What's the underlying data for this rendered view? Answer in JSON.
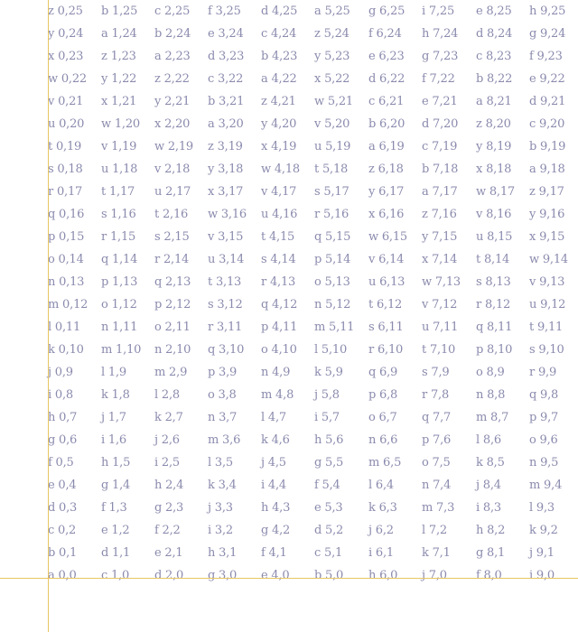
{
  "rows": [
    [
      "z 0,25",
      "b 1,25",
      "c 2,25",
      "f 3,25",
      "d 4,25",
      "a 5,25",
      "g 6,25",
      "i 7,25",
      "e 8,25",
      "h 9,25"
    ],
    [
      "y 0,24",
      "a 1,24",
      "b 2,24",
      "e 3,24",
      "c 4,24",
      "z 5,24",
      "f 6,24",
      "h 7,24",
      "d 8,24",
      "g 9,24"
    ],
    [
      "x 0,23",
      "z 1,23",
      "a 2,23",
      "d 3,23",
      "b 4,23",
      "y 5,23",
      "e 6,23",
      "g 7,23",
      "c 8,23",
      "f 9,23"
    ],
    [
      "w 0,22",
      "y 1,22",
      "z 2,22",
      "c 3,22",
      "a 4,22",
      "x 5,22",
      "d 6,22",
      "f 7,22",
      "b 8,22",
      "e 9,22"
    ],
    [
      "v 0,21",
      "x 1,21",
      "y 2,21",
      "b 3,21",
      "z 4,21",
      "w 5,21",
      "c 6,21",
      "e 7,21",
      "a 8,21",
      "d 9,21"
    ],
    [
      "u 0,20",
      "w 1,20",
      "x 2,20",
      "a 3,20",
      "y 4,20",
      "v 5,20",
      "b 6,20",
      "d 7,20",
      "z 8,20",
      "c 9,20"
    ],
    [
      "t 0,19",
      "v 1,19",
      "w 2,19",
      "z 3,19",
      "x 4,19",
      "u 5,19",
      "a 6,19",
      "c 7,19",
      "y 8,19",
      "b 9,19"
    ],
    [
      "s 0,18",
      "u 1,18",
      "v 2,18",
      "y 3,18",
      "w 4,18",
      "t 5,18",
      "z 6,18",
      "b 7,18",
      "x 8,18",
      "a 9,18"
    ],
    [
      "r 0,17",
      "t 1,17",
      "u 2,17",
      "x 3,17",
      "v 4,17",
      "s 5,17",
      "y 6,17",
      "a 7,17",
      "w 8,17",
      "z 9,17"
    ],
    [
      "q 0,16",
      "s 1,16",
      "t 2,16",
      "w 3,16",
      "u 4,16",
      "r 5,16",
      "x 6,16",
      "z 7,16",
      "v 8,16",
      "y 9,16"
    ],
    [
      "p 0,15",
      "r 1,15",
      "s 2,15",
      "v 3,15",
      "t 4,15",
      "q 5,15",
      "w 6,15",
      "y 7,15",
      "u 8,15",
      "x 9,15"
    ],
    [
      "o 0,14",
      "q 1,14",
      "r 2,14",
      "u 3,14",
      "s 4,14",
      "p 5,14",
      "v 6,14",
      "x 7,14",
      "t 8,14",
      "w 9,14"
    ],
    [
      "n 0,13",
      "p 1,13",
      "q 2,13",
      "t 3,13",
      "r 4,13",
      "o 5,13",
      "u 6,13",
      "w 7,13",
      "s 8,13",
      "v 9,13"
    ],
    [
      "m 0,12",
      "o 1,12",
      "p 2,12",
      "s 3,12",
      "q 4,12",
      "n 5,12",
      "t 6,12",
      "v 7,12",
      "r 8,12",
      "u 9,12"
    ],
    [
      "l 0,11",
      "n 1,11",
      "o 2,11",
      "r 3,11",
      "p 4,11",
      "m 5,11",
      "s 6,11",
      "u 7,11",
      "q 8,11",
      "t 9,11"
    ],
    [
      "k 0,10",
      "m 1,10",
      "n 2,10",
      "q 3,10",
      "o 4,10",
      "l 5,10",
      "r 6,10",
      "t 7,10",
      "p 8,10",
      "s 9,10"
    ],
    [
      "j 0,9",
      "l 1,9",
      "m 2,9",
      "p 3,9",
      "n 4,9",
      "k 5,9",
      "q 6,9",
      "s 7,9",
      "o 8,9",
      "r 9,9"
    ],
    [
      "i 0,8",
      "k 1,8",
      "l 2,8",
      "o 3,8",
      "m 4,8",
      "j 5,8",
      "p 6,8",
      "r 7,8",
      "n 8,8",
      "q 9,8"
    ],
    [
      "h 0,7",
      "j 1,7",
      "k 2,7",
      "n 3,7",
      "l 4,7",
      "i 5,7",
      "o 6,7",
      "q 7,7",
      "m 8,7",
      "p 9,7"
    ],
    [
      "g 0,6",
      "i 1,6",
      "j 2,6",
      "m 3,6",
      "k 4,6",
      "h 5,6",
      "n 6,6",
      "p 7,6",
      "l 8,6",
      "o 9,6"
    ],
    [
      "f 0,5",
      "h 1,5",
      "i 2,5",
      "l 3,5",
      "j 4,5",
      "g 5,5",
      "m 6,5",
      "o 7,5",
      "k 8,5",
      "n 9,5"
    ],
    [
      "e 0,4",
      "g 1,4",
      "h 2,4",
      "k 3,4",
      "i 4,4",
      "f 5,4",
      "l 6,4",
      "n 7,4",
      "j 8,4",
      "m 9,4"
    ],
    [
      "d 0,3",
      "f 1,3",
      "g 2,3",
      "j 3,3",
      "h 4,3",
      "e 5,3",
      "k 6,3",
      "m 7,3",
      "i 8,3",
      "l 9,3"
    ],
    [
      "c 0,2",
      "e 1,2",
      "f 2,2",
      "i 3,2",
      "g 4,2",
      "d 5,2",
      "j 6,2",
      "l 7,2",
      "h 8,2",
      "k 9,2"
    ],
    [
      "b 0,1",
      "d 1,1",
      "e 2,1",
      "h 3,1",
      "f 4,1",
      "c 5,1",
      "i 6,1",
      "k 7,1",
      "g 8,1",
      "j 9,1"
    ],
    [
      "a 0,0",
      "c 1,0",
      "d 2,0",
      "g 3,0",
      "e 4,0",
      "b 5,0",
      "h 6,0",
      "j 7,0",
      "f 8,0",
      "i 9,0"
    ]
  ],
  "colors": {
    "text": "#8a8aae",
    "axis": "#e8c660",
    "background": "#ffffff"
  }
}
